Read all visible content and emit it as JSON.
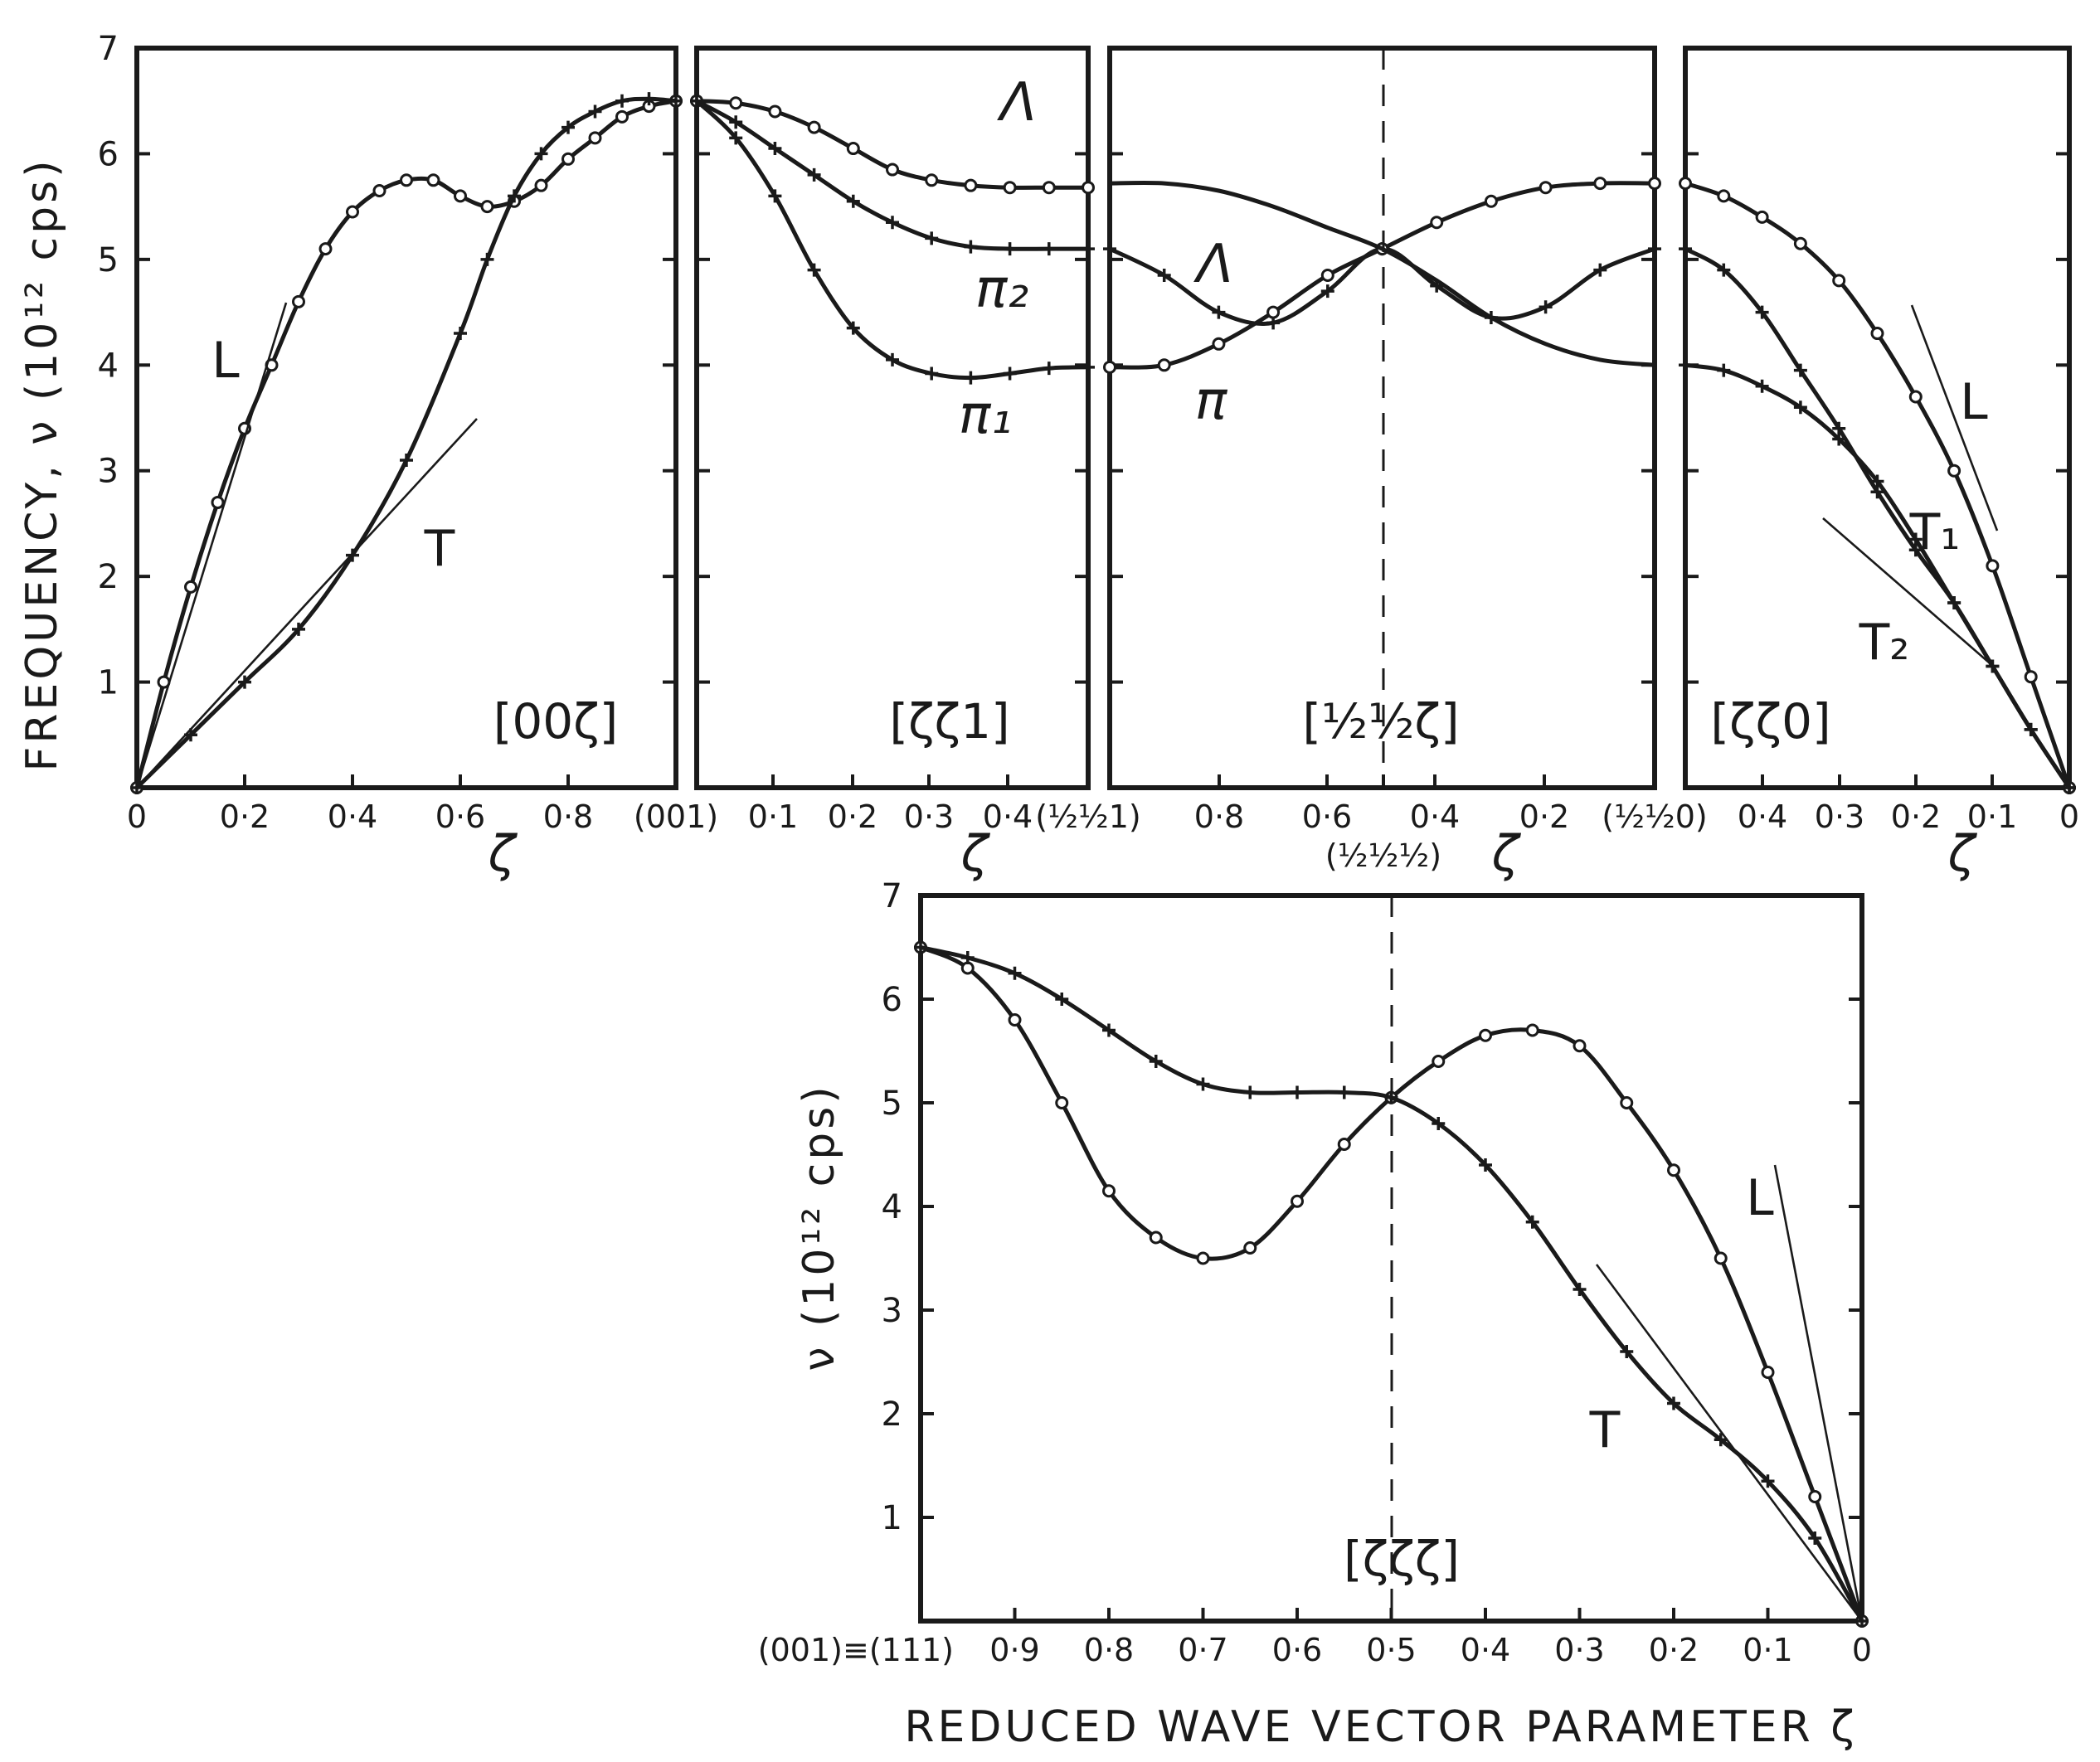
{
  "chart_data": [
    {
      "type": "line",
      "panel": "top-1",
      "direction_label": "[00ζ]",
      "xlabel": "ζ",
      "ylabel": "FREQUENCY, ν (10¹² cps)",
      "xlim": [
        0,
        1
      ],
      "ylim": [
        0,
        7
      ],
      "x_tick_labels": [
        "0",
        "0·2",
        "0·4",
        "0·6",
        "0·8",
        "(001)"
      ],
      "y_tick_labels": [
        "1",
        "2",
        "3",
        "4",
        "5",
        "6",
        "7"
      ],
      "series": [
        {
          "name": "L",
          "marker": "circle",
          "x": [
            0,
            0.05,
            0.1,
            0.15,
            0.2,
            0.25,
            0.3,
            0.35,
            0.4,
            0.45,
            0.5,
            0.55,
            0.6,
            0.65,
            0.7,
            0.75,
            0.8,
            0.85,
            0.9,
            0.95,
            1.0
          ],
          "y": [
            0,
            1.0,
            1.9,
            2.7,
            3.4,
            4.0,
            4.6,
            5.1,
            5.45,
            5.65,
            5.75,
            5.75,
            5.6,
            5.5,
            5.55,
            5.7,
            5.95,
            6.15,
            6.35,
            6.45,
            6.5
          ]
        },
        {
          "name": "T",
          "marker": "plus",
          "x": [
            0,
            0.1,
            0.2,
            0.3,
            0.4,
            0.5,
            0.6,
            0.65,
            0.7,
            0.75,
            0.8,
            0.85,
            0.9,
            0.95,
            1.0
          ],
          "y": [
            0,
            0.5,
            1.0,
            1.5,
            2.2,
            3.1,
            4.3,
            5.0,
            5.6,
            6.0,
            6.25,
            6.4,
            6.5,
            6.52,
            6.5
          ]
        }
      ],
      "labels": [
        "L",
        "T"
      ]
    },
    {
      "type": "line",
      "panel": "top-2",
      "direction_label": "[ζζ1]",
      "xlabel": "ζ",
      "xlim": [
        0,
        0.5
      ],
      "ylim": [
        0,
        7
      ],
      "x_tick_labels": [
        "0·1",
        "0·2",
        "0·3",
        "0·4",
        "(½½1)"
      ],
      "series": [
        {
          "name": "Λ",
          "marker": "circle",
          "x": [
            0,
            0.05,
            0.1,
            0.15,
            0.2,
            0.25,
            0.3,
            0.35,
            0.4,
            0.45,
            0.5
          ],
          "y": [
            6.5,
            6.48,
            6.4,
            6.25,
            6.05,
            5.85,
            5.75,
            5.7,
            5.68,
            5.68,
            5.68
          ]
        },
        {
          "name": "π₂",
          "marker": "plus",
          "x": [
            0,
            0.05,
            0.1,
            0.15,
            0.2,
            0.25,
            0.3,
            0.35,
            0.4,
            0.45,
            0.5
          ],
          "y": [
            6.5,
            6.3,
            6.05,
            5.8,
            5.55,
            5.35,
            5.2,
            5.12,
            5.1,
            5.1,
            5.1
          ]
        },
        {
          "name": "π₁",
          "marker": "plus",
          "x": [
            0,
            0.05,
            0.1,
            0.15,
            0.2,
            0.25,
            0.3,
            0.35,
            0.4,
            0.45,
            0.5
          ],
          "y": [
            6.5,
            6.15,
            5.6,
            4.9,
            4.35,
            4.05,
            3.92,
            3.88,
            3.92,
            3.97,
            3.98
          ]
        }
      ],
      "labels": [
        "Λ",
        "π₂",
        "π₁"
      ]
    },
    {
      "type": "line",
      "panel": "top-3",
      "direction_label": "[½½ζ]",
      "xlabel": "ζ",
      "xlim": [
        1,
        0
      ],
      "ylim": [
        0,
        7
      ],
      "x_tick_labels": [
        "0·8",
        "0·6",
        "(½½½)",
        "0·4",
        "0·2",
        "(½½0)"
      ],
      "series": [
        {
          "name": "Λ",
          "marker": "plus",
          "x": [
            1.0,
            0.9,
            0.8,
            0.7,
            0.6,
            0.5,
            0.4,
            0.3,
            0.2,
            0.1,
            0.0
          ],
          "y": [
            5.1,
            4.85,
            4.5,
            4.4,
            4.7,
            5.1,
            4.75,
            4.45,
            4.55,
            4.9,
            5.1
          ]
        },
        {
          "name": "π",
          "marker": "circle",
          "x": [
            1.0,
            0.9,
            0.8,
            0.7,
            0.6,
            0.5,
            0.4,
            0.3,
            0.2,
            0.1,
            0.0
          ],
          "y": [
            3.98,
            4.0,
            4.2,
            4.5,
            4.85,
            5.1,
            5.35,
            5.55,
            5.68,
            5.72,
            5.72
          ]
        },
        {
          "name": "",
          "marker": "none",
          "x": [
            1.0,
            0.9,
            0.8,
            0.7,
            0.6,
            0.5,
            0.4,
            0.3,
            0.2,
            0.1,
            0.0
          ],
          "y": [
            5.72,
            5.72,
            5.65,
            5.5,
            5.3,
            5.1,
            4.8,
            4.45,
            4.2,
            4.05,
            4.0
          ]
        }
      ],
      "labels": [
        "Λ",
        "π"
      ]
    },
    {
      "type": "line",
      "panel": "top-4",
      "direction_label": "[ζζ0]",
      "xlabel": "ζ",
      "xlim": [
        0.5,
        0
      ],
      "ylim": [
        0,
        7
      ],
      "x_tick_labels": [
        "0·4",
        "0·3",
        "0·2",
        "0·1",
        "0"
      ],
      "series": [
        {
          "name": "L",
          "marker": "circle",
          "x": [
            0.5,
            0.45,
            0.4,
            0.35,
            0.3,
            0.25,
            0.2,
            0.15,
            0.1,
            0.05,
            0.0
          ],
          "y": [
            5.72,
            5.6,
            5.4,
            5.15,
            4.8,
            4.3,
            3.7,
            3.0,
            2.1,
            1.05,
            0
          ]
        },
        {
          "name": "T₁",
          "marker": "plus",
          "x": [
            0.5,
            0.45,
            0.4,
            0.35,
            0.3,
            0.25,
            0.2,
            0.15,
            0.1,
            0.05,
            0.0
          ],
          "y": [
            5.1,
            4.9,
            4.5,
            3.95,
            3.4,
            2.8,
            2.25,
            1.75,
            1.15,
            0.55,
            0
          ]
        },
        {
          "name": "T₂",
          "marker": "plus",
          "x": [
            0.5,
            0.45,
            0.4,
            0.35,
            0.3,
            0.25,
            0.2,
            0.15,
            0.1,
            0.05,
            0.0
          ],
          "y": [
            4.0,
            3.95,
            3.8,
            3.6,
            3.3,
            2.9,
            2.35,
            1.75,
            1.15,
            0.55,
            0
          ]
        }
      ],
      "labels": [
        "L",
        "T₁",
        "T₂"
      ]
    },
    {
      "type": "line",
      "panel": "bottom",
      "direction_label": "[ζζζ]",
      "xlabel": "REDUCED WAVE VECTOR PARAMETER ζ",
      "ylabel": "ν (10¹² cps)",
      "xlim": [
        1,
        0
      ],
      "ylim": [
        0,
        7
      ],
      "x_tick_labels": [
        "(001)≡(111)",
        "0·9",
        "0·8",
        "0·7",
        "0·6",
        "0·5",
        "0·4",
        "0·3",
        "0·2",
        "0·1",
        "0"
      ],
      "y_tick_labels": [
        "1",
        "2",
        "3",
        "4",
        "5",
        "6",
        "7"
      ],
      "series": [
        {
          "name": "L",
          "marker": "circle",
          "x": [
            1.0,
            0.95,
            0.9,
            0.85,
            0.8,
            0.75,
            0.7,
            0.65,
            0.6,
            0.55,
            0.5,
            0.45,
            0.4,
            0.35,
            0.3,
            0.25,
            0.2,
            0.15,
            0.1,
            0.05,
            0.0
          ],
          "y": [
            6.5,
            6.3,
            5.8,
            5.0,
            4.15,
            3.7,
            3.5,
            3.6,
            4.05,
            4.6,
            5.05,
            5.4,
            5.65,
            5.7,
            5.55,
            5.0,
            4.35,
            3.5,
            2.4,
            1.2,
            0
          ]
        },
        {
          "name": "T",
          "marker": "plus",
          "x": [
            1.0,
            0.95,
            0.9,
            0.85,
            0.8,
            0.75,
            0.7,
            0.65,
            0.6,
            0.55,
            0.5,
            0.45,
            0.4,
            0.35,
            0.3,
            0.25,
            0.2,
            0.15,
            0.1,
            0.05,
            0.0
          ],
          "y": [
            6.5,
            6.4,
            6.25,
            6.0,
            5.7,
            5.4,
            5.18,
            5.1,
            5.1,
            5.1,
            5.05,
            4.8,
            4.4,
            3.85,
            3.2,
            2.6,
            2.1,
            1.75,
            1.35,
            0.8,
            0
          ]
        }
      ],
      "labels": [
        "L",
        "T"
      ]
    }
  ]
}
